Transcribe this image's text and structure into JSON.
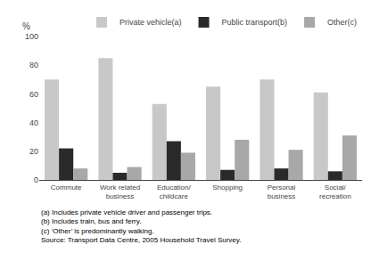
{
  "chart_data": {
    "type": "bar",
    "categories": [
      "Commute",
      "Work related\nbusiness",
      "Education/\nchildcare",
      "Shopping",
      "Personal\nbusiness",
      "Social/\nrecreation"
    ],
    "series": [
      {
        "name": "Private vehicle(a)",
        "color": "#c8c8c8",
        "values": [
          70,
          85,
          53,
          65,
          70,
          61
        ]
      },
      {
        "name": "Public transport(b)",
        "color": "#2a2a2a",
        "values": [
          22,
          5,
          27,
          7,
          8,
          6
        ]
      },
      {
        "name": "Other(c)",
        "color": "#a8a8a8",
        "values": [
          8,
          9,
          19,
          28,
          21,
          31
        ]
      }
    ],
    "ylabel": "%",
    "ylim": [
      0,
      100
    ],
    "yticks": [
      0,
      20,
      40,
      60,
      80,
      100
    ],
    "grid": false,
    "legend": "upper right",
    "annotations": [
      "(a) Includes private vehicle driver and passenger trips.",
      "(b) Includes train, bus and ferry.",
      "(c) ‘Other’ is predominantly walking.",
      "Source: Transport Data Centre, 2005 Household Travel Survey."
    ]
  }
}
